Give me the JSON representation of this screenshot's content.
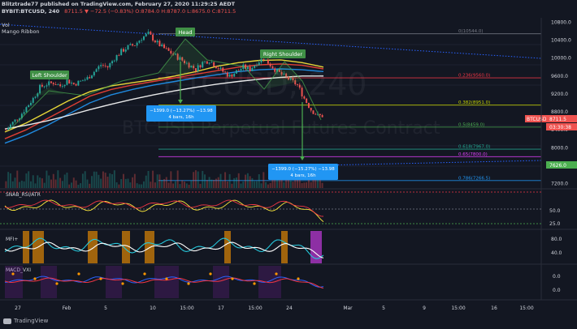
{
  "header": {
    "line1": "Blitztrade77 published on TradingView.com, February 27, 2020 11:29:25 AEDT",
    "symbol": "BYBIT:BTCUSD, 240",
    "ohlc": "8711.5  ▼ −72.5 (−0.83%)  O:8784.0  H:8787.0  L:8675.0  C:8711.5",
    "ind1": "Vol",
    "ind2": "Mango Ribbon"
  },
  "watermark": {
    "symbol": "BTCUSD, 240",
    "desc": "BTCUSD Perpetual Futures Contract"
  },
  "annotations": {
    "head": "Head",
    "left_shoulder": "Left Shoulder",
    "right_shoulder": "Right Shoulder",
    "measure1_line1": "−1399.0 (−13.27%) −13.98",
    "measure1_line2": "4 bars, 16h",
    "measure2_line1": "−1399.0 (−15.27%) −13.98",
    "measure2_line2": "4 bars, 16h"
  },
  "fib_labels": [
    {
      "label": "0(10544.0)",
      "value": 10544,
      "color": "#787b86"
    },
    {
      "label": "0.236(9560.0)",
      "value": 9560,
      "color": "#f23645"
    },
    {
      "label": "0.382(8951.0)",
      "value": 8951,
      "color": "#c8d600"
    },
    {
      "label": "0.5(8459.0)",
      "value": 8459,
      "color": "#4caf50"
    },
    {
      "label": "0.618(7967.0)",
      "value": 7967,
      "color": "#22ab94"
    },
    {
      "label": "0.65(7800.0)",
      "value": 7800,
      "color": "#e040fb"
    },
    {
      "label": "0.786(7266.5)",
      "value": 7266.5,
      "color": "#2196f3"
    }
  ],
  "price_badges": {
    "btc_label": "BTCUSD",
    "price": "8711.5",
    "countdown": "03:30:38",
    "green": "7626.0"
  },
  "panels": {
    "snab": "SNAB_RSI/ATR",
    "mfi": "MFI+",
    "macd": "MACD_VXI"
  },
  "colors": {
    "bg": "#131722",
    "up": "#26a69a",
    "down": "#ef5350",
    "accent_blue": "#2196f3"
  },
  "chart_data": {
    "type": "candlestick",
    "y_ticks": [
      10800,
      10400,
      10000,
      9600,
      9200,
      8800,
      8400,
      8000,
      7600,
      7200
    ],
    "ylim": [
      7100,
      10900
    ],
    "x_ticks": [
      "27",
      "Feb",
      "5",
      "10",
      "15:00",
      "17",
      "15:00",
      "24",
      "Mar",
      "5",
      "9",
      "15:00",
      "16",
      "15:00"
    ],
    "rsi_ticks": [
      "75.0",
      "50.0",
      "25.0"
    ],
    "mfi_ticks": [
      "80.0",
      "40.0"
    ],
    "macd_ticks": [
      "0.0",
      "0.0"
    ],
    "price_series": [
      8400,
      8560,
      8700,
      8900,
      9100,
      9350,
      9420,
      9450,
      9380,
      9500,
      9420,
      9480,
      9550,
      9700,
      9850,
      9800,
      10000,
      10150,
      10250,
      10300,
      10450,
      10544,
      10380,
      10250,
      10150,
      10050,
      9950,
      9850,
      9750,
      9900,
      9950,
      9820,
      9700,
      9600,
      9700,
      9800,
      9750,
      9900,
      10000,
      9850,
      9700,
      9600,
      9500,
      9400,
      9100,
      8850,
      8711.5
    ],
    "ribbon_series": [
      {
        "name": "Mango Ribbon 1",
        "color": "#ffeb3b",
        "values": [
          8350,
          8550,
          8800,
          9050,
          9250,
          9380,
          9450,
          9520,
          9600,
          9700,
          9820,
          9900,
          9950,
          9960,
          9900,
          9800
        ]
      },
      {
        "name": "Mango Ribbon 2",
        "color": "#f44336",
        "values": [
          8200,
          8400,
          8650,
          8900,
          9150,
          9300,
          9400,
          9480,
          9560,
          9640,
          9720,
          9800,
          9850,
          9870,
          9840,
          9760
        ]
      },
      {
        "name": "Mango Ribbon 3",
        "color": "#2196f3",
        "values": [
          8100,
          8280,
          8500,
          8750,
          9000,
          9180,
          9300,
          9400,
          9480,
          9560,
          9630,
          9700,
          9740,
          9760,
          9740,
          9700
        ]
      },
      {
        "name": "Mango Ribbon 4",
        "color": "#ffffff",
        "values": [
          8420,
          8500,
          8600,
          8720,
          8850,
          8970,
          9080,
          9180,
          9270,
          9350,
          9420,
          9480,
          9530,
          9570,
          9600,
          9600
        ]
      }
    ]
  }
}
